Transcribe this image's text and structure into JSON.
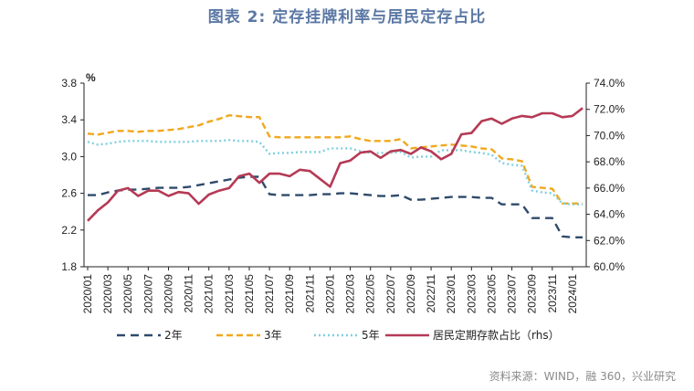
{
  "page": {
    "title": "图表 2:  定存挂牌利率与居民定存占比",
    "source": "资料来源：WIND，融 360，兴业研究"
  },
  "chart_data": {
    "type": "line",
    "title": "图表 2:  定存挂牌利率与居民定存占比",
    "ylabel": "%",
    "ylim": [
      1.8,
      3.8
    ],
    "y_ticks": [
      "1.8",
      "2.2",
      "2.6",
      "3.0",
      "3.4",
      "3.8"
    ],
    "y2lim": [
      60.0,
      74.0
    ],
    "y2_ticks": [
      "60.0%",
      "62.0%",
      "64.0%",
      "66.0%",
      "68.0%",
      "70.0%",
      "72.0%",
      "74.0%"
    ],
    "x_tick_labels": [
      "2020/01",
      "2020/03",
      "2020/05",
      "2020/07",
      "2020/09",
      "2020/11",
      "2021/01",
      "2021/03",
      "2021/05",
      "2021/07",
      "2021/09",
      "2021/11",
      "2022/01",
      "2022/03",
      "2022/05",
      "2022/07",
      "2022/09",
      "2022/11",
      "2023/01",
      "2023/03",
      "2023/05",
      "2023/07",
      "2023/09",
      "2023/11",
      "2024/01"
    ],
    "x": [
      "2020/01",
      "2020/02",
      "2020/03",
      "2020/04",
      "2020/05",
      "2020/06",
      "2020/07",
      "2020/08",
      "2020/09",
      "2020/10",
      "2020/11",
      "2020/12",
      "2021/01",
      "2021/02",
      "2021/03",
      "2021/04",
      "2021/05",
      "2021/06",
      "2021/07",
      "2021/08",
      "2021/09",
      "2021/10",
      "2021/11",
      "2021/12",
      "2022/01",
      "2022/02",
      "2022/03",
      "2022/04",
      "2022/05",
      "2022/06",
      "2022/07",
      "2022/08",
      "2022/09",
      "2022/10",
      "2022/11",
      "2022/12",
      "2023/01",
      "2023/02",
      "2023/03",
      "2023/04",
      "2023/05",
      "2023/06",
      "2023/07",
      "2023/08",
      "2023/09",
      "2023/10",
      "2023/11",
      "2023/12",
      "2024/01",
      "2024/02"
    ],
    "series": [
      {
        "name": "2年",
        "axis": "left",
        "color": "#2f4a6b",
        "dash": "9,6",
        "values": [
          2.58,
          2.58,
          2.61,
          2.63,
          2.64,
          2.64,
          2.65,
          2.66,
          2.66,
          2.66,
          2.67,
          2.69,
          2.71,
          2.73,
          2.75,
          2.77,
          2.78,
          2.78,
          2.59,
          2.58,
          2.58,
          2.58,
          2.58,
          2.59,
          2.59,
          2.6,
          2.6,
          2.59,
          2.58,
          2.57,
          2.57,
          2.58,
          2.53,
          2.53,
          2.54,
          2.55,
          2.56,
          2.56,
          2.56,
          2.55,
          2.55,
          2.48,
          2.48,
          2.48,
          2.33,
          2.33,
          2.33,
          2.13,
          2.12,
          2.12
        ]
      },
      {
        "name": "3年",
        "axis": "left",
        "color": "#f0a81d",
        "dash": "7,4",
        "values": [
          3.25,
          3.24,
          3.26,
          3.28,
          3.28,
          3.27,
          3.28,
          3.28,
          3.29,
          3.3,
          3.32,
          3.34,
          3.38,
          3.41,
          3.45,
          3.44,
          3.43,
          3.43,
          3.22,
          3.21,
          3.21,
          3.21,
          3.21,
          3.21,
          3.21,
          3.21,
          3.22,
          3.19,
          3.17,
          3.17,
          3.17,
          3.19,
          3.09,
          3.1,
          3.11,
          3.12,
          3.13,
          3.12,
          3.11,
          3.09,
          3.08,
          2.98,
          2.97,
          2.95,
          2.67,
          2.66,
          2.65,
          2.49,
          2.49,
          2.49
        ]
      },
      {
        "name": "5年",
        "axis": "left",
        "color": "#7fd0dd",
        "dash": "2,3",
        "values": [
          3.16,
          3.13,
          3.14,
          3.16,
          3.17,
          3.17,
          3.17,
          3.16,
          3.16,
          3.16,
          3.16,
          3.17,
          3.17,
          3.17,
          3.18,
          3.17,
          3.17,
          3.16,
          3.03,
          3.04,
          3.04,
          3.05,
          3.05,
          3.05,
          3.09,
          3.09,
          3.09,
          3.06,
          3.04,
          3.04,
          3.04,
          3.05,
          2.99,
          3.0,
          3.0,
          3.07,
          3.07,
          3.07,
          3.05,
          3.04,
          3.02,
          2.93,
          2.91,
          2.9,
          2.63,
          2.61,
          2.6,
          2.49,
          2.48,
          2.48
        ]
      },
      {
        "name": "居民定期存款占比（rhs）",
        "axis": "right",
        "color": "#b53a55",
        "dash": "",
        "values": [
          63.5,
          64.3,
          64.9,
          65.8,
          66.0,
          65.4,
          65.8,
          65.8,
          65.4,
          65.7,
          65.6,
          64.8,
          65.5,
          65.8,
          66.0,
          66.9,
          67.1,
          66.4,
          67.1,
          67.1,
          66.9,
          67.4,
          67.3,
          66.7,
          66.1,
          67.9,
          68.1,
          68.7,
          68.8,
          68.3,
          68.8,
          68.9,
          68.6,
          69.1,
          68.8,
          68.2,
          68.6,
          70.1,
          70.2,
          71.1,
          71.3,
          70.9,
          71.3,
          71.5,
          71.4,
          71.7,
          71.7,
          71.4,
          71.5,
          72.1
        ]
      }
    ],
    "legend": {
      "position": "bottom",
      "items": [
        "2年",
        "3年",
        "5年",
        "居民定期存款占比（rhs）"
      ]
    },
    "grid": false
  }
}
